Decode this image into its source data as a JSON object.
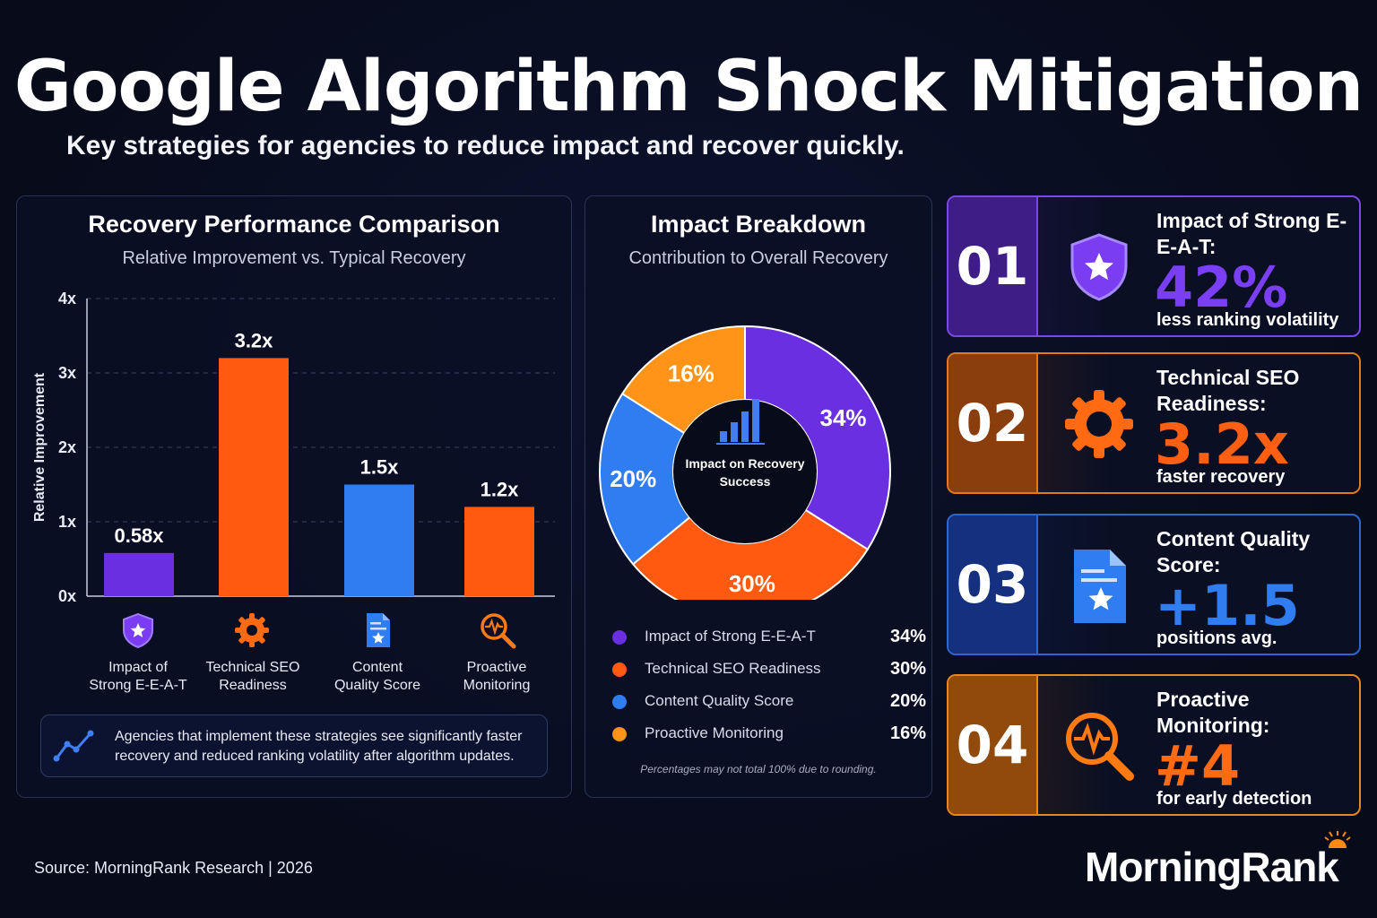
{
  "header": {
    "title": "Google Algorithm Shock Mitigation",
    "subtitle": "Key strategies for agencies to reduce impact and recover quickly."
  },
  "bar_panel": {
    "title": "Recovery Performance Comparison",
    "subtitle": "Relative Improvement vs. Typical Recovery",
    "note": "Agencies that implement these strategies see significantly faster recovery and reduced ranking volatility after algorithm updates.",
    "note_icon": "trend-line-icon"
  },
  "donut_panel": {
    "title": "Impact Breakdown",
    "subtitle": "Contribution to Overall Recovery",
    "center_label_1": "Impact on Recovery",
    "center_label_2": "Success",
    "center_icon": "bar-chart-icon",
    "footnote": "Percentages may not total 100% due to rounding."
  },
  "chart_data": [
    {
      "type": "bar",
      "title": "Recovery Performance Comparison",
      "subtitle": "Relative Improvement vs. Typical Recovery",
      "xlabel": "",
      "ylabel": "Relative Improvement",
      "ylim": [
        0,
        4
      ],
      "yticks": [
        "0x",
        "1x",
        "2x",
        "3x",
        "4x"
      ],
      "grid": true,
      "categories": [
        {
          "line1": "Impact of",
          "line2": "Strong E-E-A-T",
          "icon": "shield-star-icon"
        },
        {
          "line1": "Technical SEO",
          "line2": "Readiness",
          "icon": "gear-icon"
        },
        {
          "line1": "Content",
          "line2": "Quality Score",
          "icon": "document-star-icon"
        },
        {
          "line1": "Proactive",
          "line2": "Monitoring",
          "icon": "magnifier-pulse-icon"
        }
      ],
      "values": [
        0.58,
        3.2,
        1.5,
        1.2
      ],
      "value_labels": [
        "0.58x",
        "3.2x",
        "1.5x",
        "1.2x"
      ],
      "colors": [
        "#6a2fe0",
        "#ff5a0f",
        "#2f7df0",
        "#ff5a0f"
      ]
    },
    {
      "type": "pie",
      "variant": "donut",
      "title": "Impact Breakdown",
      "subtitle": "Contribution to Overall Recovery",
      "slices": [
        {
          "label": "Impact of Strong E-E-A-T",
          "value": 34,
          "display": "34%",
          "color": "#6a2fe0"
        },
        {
          "label": "Technical SEO Readiness",
          "value": 30,
          "display": "30%",
          "color": "#ff5a0f"
        },
        {
          "label": "Content Quality Score",
          "value": 20,
          "display": "20%",
          "color": "#2f7df0"
        },
        {
          "label": "Proactive Monitoring",
          "value": 16,
          "display": "16%",
          "color": "#ff9418"
        }
      ],
      "legend_position": "bottom"
    }
  ],
  "cards": [
    {
      "num": "01",
      "label": "Impact of Strong E-E-A-T:",
      "value": "42%",
      "desc": "less ranking volatility",
      "icon": "shield-star-icon",
      "accent": "#7b3df2",
      "border": "#7a48e6",
      "numbg": "#3f1d86",
      "valuecolor": "#7a3ef5"
    },
    {
      "num": "02",
      "label": "Technical SEO Readiness:",
      "value": "3.2x",
      "desc": "faster recovery",
      "icon": "gear-icon",
      "accent": "#ff6a12",
      "border": "#e27a1c",
      "numbg": "#8a3d0d",
      "valuecolor": "#ff5f12"
    },
    {
      "num": "03",
      "label": "Content Quality Score:",
      "value": "+1.5",
      "desc": "positions avg.",
      "icon": "document-star-icon",
      "accent": "#2f7df0",
      "border": "#2e66d0",
      "numbg": "#14307e",
      "valuecolor": "#2f7df0"
    },
    {
      "num": "04",
      "label": "Proactive Monitoring:",
      "value": "#4",
      "desc": "for early detection",
      "icon": "magnifier-pulse-icon",
      "accent": "#ff8a12",
      "border": "#e7881a",
      "numbg": "#8f4a0c",
      "valuecolor": "#ff6a12"
    }
  ],
  "footer": {
    "source": "Source: MorningRank Research  |  2026",
    "brand": "MorningRank",
    "brand_icon": "rising-sun-icon"
  }
}
